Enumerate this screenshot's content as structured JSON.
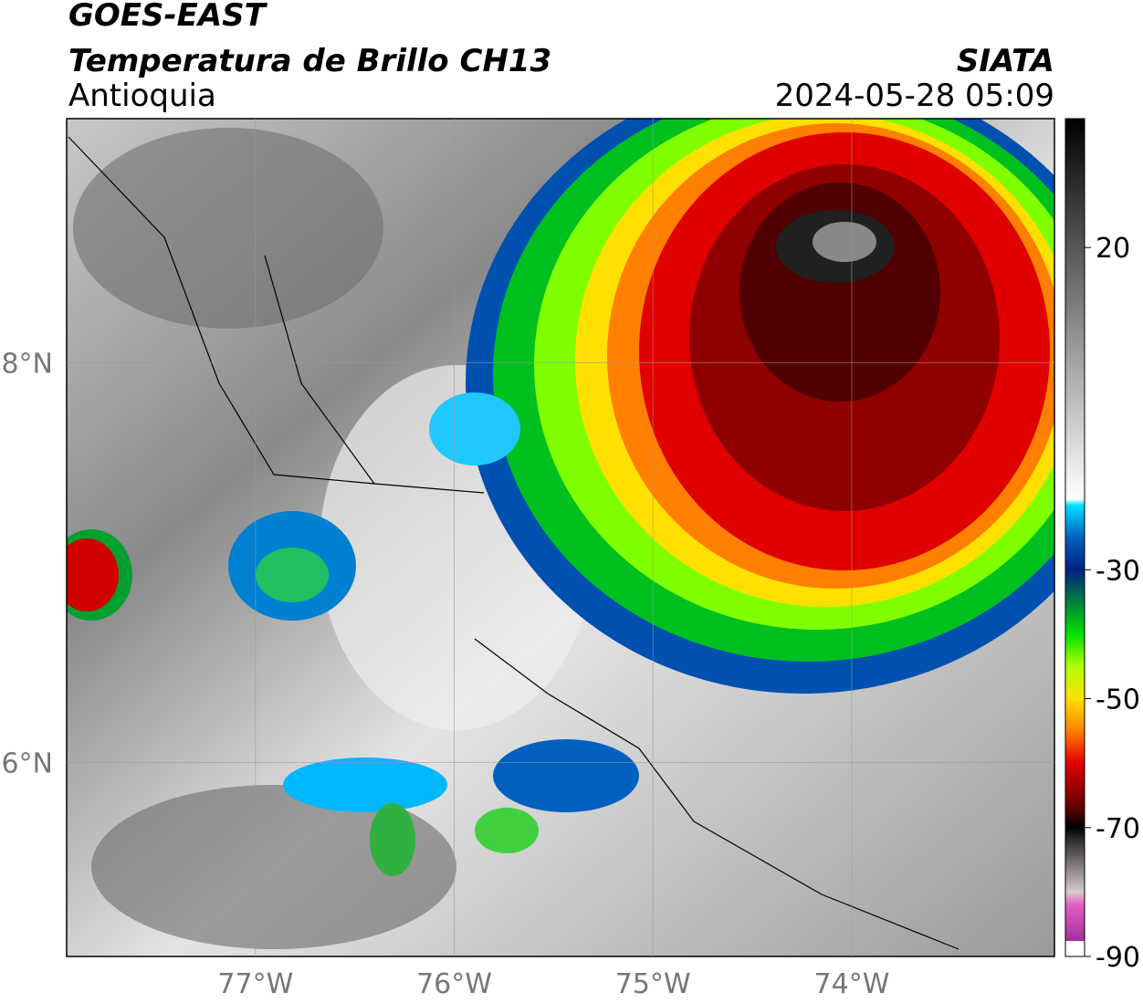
{
  "header": {
    "title": "GOES-EAST",
    "subtitle": "Temperatura de Brillo CH13",
    "region": "Antioquia",
    "source": "SIATA",
    "timestamp": "2024-05-28 05:09"
  },
  "map": {
    "xlim": [
      -77.95,
      -72.98
    ],
    "ylim": [
      5.03,
      9.22
    ],
    "xticks": [
      {
        "value": -77,
        "label": "77°W"
      },
      {
        "value": -76,
        "label": "76°W"
      },
      {
        "value": -75,
        "label": "75°W"
      },
      {
        "value": -74,
        "label": "74°W"
      }
    ],
    "yticks": [
      {
        "value": 8,
        "label": "8°N"
      },
      {
        "value": 6,
        "label": "6°N"
      }
    ],
    "grid": true
  },
  "colorbar": {
    "range": [
      -90,
      40
    ],
    "ticks": [
      20,
      -30,
      -50,
      -70,
      -90
    ],
    "stops": [
      {
        "value": -90,
        "color": "#8b1a8b"
      },
      {
        "value": -82,
        "color": "#e060c0"
      },
      {
        "value": -80,
        "color": "#d8c8d0"
      },
      {
        "value": -72,
        "color": "#303030"
      },
      {
        "value": -70,
        "color": "#000000"
      },
      {
        "value": -67,
        "color": "#600000"
      },
      {
        "value": -60,
        "color": "#e00000"
      },
      {
        "value": -55,
        "color": "#ff8000"
      },
      {
        "value": -50,
        "color": "#ffe000"
      },
      {
        "value": -45,
        "color": "#b0ff00"
      },
      {
        "value": -40,
        "color": "#00e000"
      },
      {
        "value": -35,
        "color": "#008040"
      },
      {
        "value": -30,
        "color": "#002080"
      },
      {
        "value": -25,
        "color": "#0060c0"
      },
      {
        "value": -20,
        "color": "#00e0ff"
      },
      {
        "value": -19,
        "color": "#ffffff"
      },
      {
        "value": 40,
        "color": "#000000"
      }
    ]
  }
}
